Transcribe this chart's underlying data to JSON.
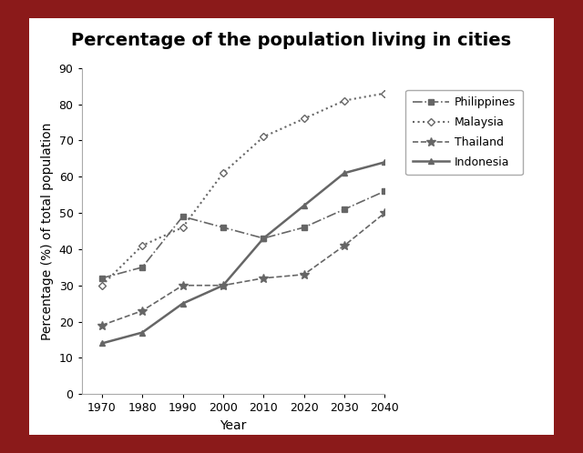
{
  "title": "Percentage of the population living in cities",
  "xlabel": "Year",
  "ylabel": "Percentage (%) of total population",
  "years": [
    1970,
    1980,
    1990,
    2000,
    2010,
    2020,
    2030,
    2040
  ],
  "philippines": [
    32,
    35,
    49,
    46,
    43,
    46,
    51,
    56
  ],
  "malaysia": [
    30,
    41,
    46,
    61,
    71,
    76,
    81,
    83
  ],
  "thailand": [
    19,
    23,
    30,
    30,
    32,
    33,
    41,
    50
  ],
  "indonesia": [
    14,
    17,
    25,
    30,
    43,
    52,
    61,
    64
  ],
  "ylim": [
    0,
    90
  ],
  "yticks": [
    0,
    10,
    20,
    30,
    40,
    50,
    60,
    70,
    80,
    90
  ],
  "xticks": [
    1970,
    1980,
    1990,
    2000,
    2010,
    2020,
    2030,
    2040
  ],
  "line_color": "#666666",
  "background_outer": "#8B1A1A",
  "background_inner": "#ffffff",
  "legend_labels": [
    "Philippines",
    "Malaysia",
    "Thailand",
    "Indonesia"
  ],
  "title_fontsize": 14,
  "axis_label_fontsize": 10,
  "tick_fontsize": 9,
  "legend_fontsize": 9
}
